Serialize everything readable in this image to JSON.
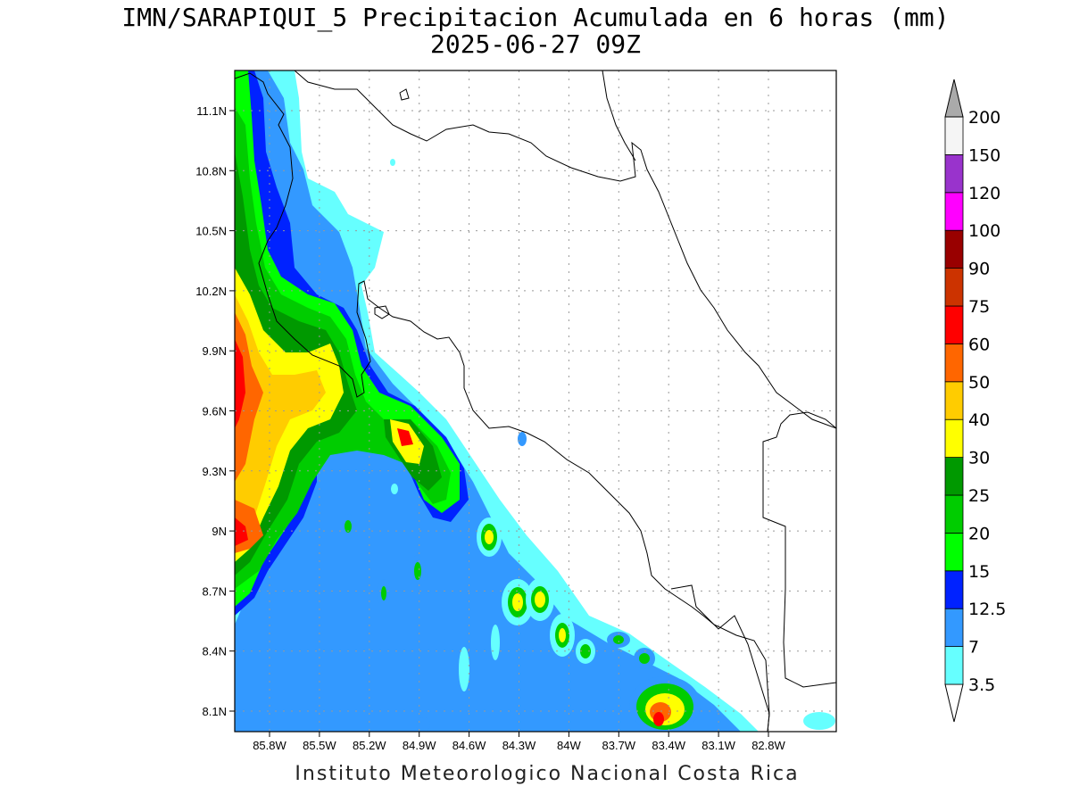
{
  "title": {
    "line1": "IMN/SARAPIQUI_5 Precipitacion Acumulada en 6 horas (mm)",
    "line2": "2025-06-27 09Z"
  },
  "credit": "Instituto Meteorologico Nacional Costa Rica",
  "axes": {
    "lat_ticks": [
      "11.1N",
      "10.8N",
      "10.5N",
      "10.2N",
      "9.9N",
      "9.6N",
      "9.3N",
      "9N",
      "8.7N",
      "8.4N",
      "8.1N"
    ],
    "lon_ticks": [
      "85.8W",
      "85.5W",
      "85.2W",
      "84.9W",
      "84.6W",
      "84.3W",
      "84W",
      "83.7W",
      "83.4W",
      "83.1W",
      "82.8W"
    ],
    "grid": true
  },
  "colorbar": {
    "labels": [
      "3.5",
      "7",
      "12.5",
      "15",
      "20",
      "25",
      "30",
      "40",
      "50",
      "60",
      "75",
      "90",
      "100",
      "120",
      "150",
      "200"
    ],
    "colors": [
      "#66ffff",
      "#3399ff",
      "#0022ff",
      "#00ff00",
      "#00cc00",
      "#009900",
      "#ffff00",
      "#ffcc00",
      "#ff6600",
      "#ff0000",
      "#cc3300",
      "#990000",
      "#ff00ff",
      "#9933cc",
      "#f5f5f5",
      "#aaaaaa"
    ]
  }
}
